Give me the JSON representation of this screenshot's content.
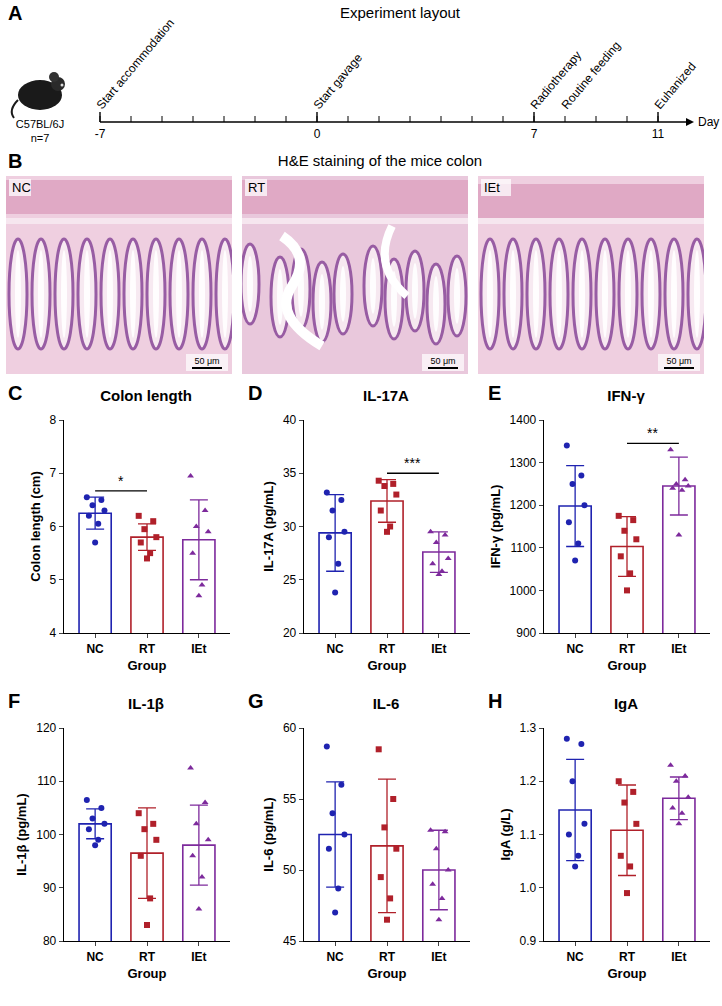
{
  "timeline": {
    "label": "A",
    "title": "Experiment layout",
    "subject": "C57BL/6J",
    "n": "n=7",
    "axis_label": "Day",
    "range": [
      -7,
      11
    ],
    "printed_days": [
      -7,
      0,
      7,
      11
    ],
    "events": [
      {
        "day": -7,
        "label": "Start accommodation"
      },
      {
        "day": 0,
        "label": "Start gavage"
      },
      {
        "day": 7,
        "label": "Radiotherapy"
      },
      {
        "day": 8,
        "label": "Routine feeding"
      },
      {
        "day": 11,
        "label": "Euhanized"
      }
    ]
  },
  "histology": {
    "label": "B",
    "title": "H&E staining of the mice colon",
    "panels": [
      {
        "name": "NC",
        "scale": "50 μm"
      },
      {
        "name": "RT",
        "scale": "50 μm"
      },
      {
        "name": "IEt",
        "scale": "50 μm"
      }
    ]
  },
  "chart_data": [
    {
      "label": "C",
      "type": "bar",
      "title": "Colon length",
      "ylabel": "Colon length (cm)",
      "xlabel": "Group",
      "categories": [
        "NC",
        "RT",
        "IEt"
      ],
      "ylim": [
        4,
        8
      ],
      "yticks": [
        4,
        5,
        6,
        7,
        8
      ],
      "grid": false,
      "series": [
        {
          "name": "NC",
          "color": "#1f23b0",
          "marker": "circle",
          "value": 6.25,
          "error": 0.3,
          "points": [
            6.55,
            6.5,
            6.4,
            6.3,
            6.2,
            6.05,
            5.7
          ]
        },
        {
          "name": "RT",
          "color": "#b0202a",
          "marker": "square",
          "value": 5.8,
          "error": 0.25,
          "points": [
            6.2,
            6.1,
            5.95,
            5.8,
            5.7,
            5.5,
            5.4
          ]
        },
        {
          "name": "IEt",
          "color": "#7d2a9c",
          "marker": "triangle-up",
          "value": 5.75,
          "error": 0.75,
          "points": [
            6.95,
            6.3,
            6.0,
            5.9,
            5.5,
            4.9,
            4.7
          ]
        }
      ],
      "significance": [
        {
          "from": "NC",
          "to": "RT",
          "text": "*"
        }
      ]
    },
    {
      "label": "D",
      "type": "bar",
      "title": "IL-17A",
      "ylabel": "IL-17A (pg/mL)",
      "xlabel": "Group",
      "categories": [
        "NC",
        "RT",
        "IEt"
      ],
      "ylim": [
        20,
        40
      ],
      "yticks": [
        20,
        25,
        30,
        35,
        40
      ],
      "grid": false,
      "series": [
        {
          "name": "NC",
          "color": "#1f23b0",
          "marker": "circle",
          "value": 29.4,
          "error": 3.6,
          "points": [
            33.2,
            32.5,
            31.5,
            29.5,
            29,
            26.5,
            23.8
          ]
        },
        {
          "name": "RT",
          "color": "#b0202a",
          "marker": "square",
          "value": 32.4,
          "error": 2,
          "points": [
            34.3,
            34,
            33.8,
            33,
            31.5,
            30,
            29.5
          ]
        },
        {
          "name": "IEt",
          "color": "#7d2a9c",
          "marker": "triangle-up",
          "value": 27.6,
          "error": 1.9,
          "points": [
            29.5,
            29.2,
            28.5,
            27,
            26.5,
            25.8,
            25.5
          ]
        }
      ],
      "significance": [
        {
          "from": "RT",
          "to": "IEt",
          "text": "***"
        }
      ]
    },
    {
      "label": "E",
      "type": "bar",
      "title": "IFN-γ",
      "ylabel": "IFN-γ (pg/mL)",
      "xlabel": "Group",
      "categories": [
        "NC",
        "RT",
        "IEt"
      ],
      "ylim": [
        900,
        1400
      ],
      "yticks": [
        900,
        1000,
        1100,
        1200,
        1300,
        1400
      ],
      "grid": false,
      "series": [
        {
          "name": "NC",
          "color": "#1f23b0",
          "marker": "circle",
          "value": 1198,
          "error": 95,
          "points": [
            1340,
            1270,
            1250,
            1200,
            1160,
            1110,
            1070
          ]
        },
        {
          "name": "RT",
          "color": "#b0202a",
          "marker": "square",
          "value": 1103,
          "error": 70,
          "points": [
            1175,
            1165,
            1140,
            1120,
            1080,
            1040,
            1000
          ]
        },
        {
          "name": "IEt",
          "color": "#7d2a9c",
          "marker": "triangle-up",
          "value": 1245,
          "error": 68,
          "points": [
            1330,
            1260,
            1250,
            1245,
            1240,
            1235,
            1130
          ]
        }
      ],
      "significance": [
        {
          "from": "RT",
          "to": "IEt",
          "text": "**"
        }
      ]
    },
    {
      "label": "F",
      "type": "bar",
      "title": "IL-1β",
      "ylabel": "IL-1β (pg/mL)",
      "xlabel": "Group",
      "categories": [
        "NC",
        "RT",
        "IEt"
      ],
      "ylim": [
        80,
        120
      ],
      "yticks": [
        80,
        90,
        100,
        110,
        120
      ],
      "grid": false,
      "series": [
        {
          "name": "NC",
          "color": "#1f23b0",
          "marker": "circle",
          "value": 102,
          "error": 2.8,
          "points": [
            106.5,
            105,
            103,
            102,
            101,
            99,
            98
          ]
        },
        {
          "name": "RT",
          "color": "#b0202a",
          "marker": "square",
          "value": 96.5,
          "error": 8.5,
          "points": [
            104,
            102,
            101,
            99,
            96,
            88,
            83
          ]
        },
        {
          "name": "IEt",
          "color": "#7d2a9c",
          "marker": "triangle-up",
          "value": 98,
          "error": 7.5,
          "points": [
            112.5,
            106,
            102,
            99,
            96,
            92,
            86
          ]
        }
      ],
      "significance": []
    },
    {
      "label": "G",
      "type": "bar",
      "title": "IL-6",
      "ylabel": "IL-6 (pg/mL)",
      "xlabel": "Group",
      "categories": [
        "NC",
        "RT",
        "IEt"
      ],
      "ylim": [
        45,
        60
      ],
      "yticks": [
        45,
        50,
        55,
        60
      ],
      "grid": false,
      "series": [
        {
          "name": "NC",
          "color": "#1f23b0",
          "marker": "circle",
          "value": 52.5,
          "error": 3.7,
          "points": [
            58.7,
            56,
            54,
            52.5,
            51.5,
            48.7,
            47
          ]
        },
        {
          "name": "RT",
          "color": "#b0202a",
          "marker": "square",
          "value": 51.7,
          "error": 4.7,
          "points": [
            58.5,
            55,
            53,
            51.5,
            49.5,
            48,
            46.5
          ]
        },
        {
          "name": "IEt",
          "color": "#7d2a9c",
          "marker": "triangle-up",
          "value": 50,
          "error": 2.8,
          "points": [
            52.8,
            52.7,
            51.5,
            50,
            49,
            48,
            46.5
          ]
        }
      ],
      "significance": []
    },
    {
      "label": "H",
      "type": "bar",
      "title": "IgA",
      "ylabel": "IgA (g/L)",
      "xlabel": "Group",
      "categories": [
        "NC",
        "RT",
        "IEt"
      ],
      "ylim": [
        0.9,
        1.3
      ],
      "yticks": [
        0.9,
        {
          "value": 1,
          "label": "1.0"
        },
        1.1,
        1.2,
        1.3
      ],
      "grid": false,
      "series": [
        {
          "name": "NC",
          "color": "#1f23b0",
          "marker": "circle",
          "value": 1.146,
          "error": 0.095,
          "points": [
            1.28,
            1.27,
            1.2,
            1.12,
            1.1,
            1.06,
            1.04
          ]
        },
        {
          "name": "RT",
          "color": "#b0202a",
          "marker": "square",
          "value": 1.108,
          "error": 0.085,
          "points": [
            1.2,
            1.18,
            1.16,
            1.12,
            1.06,
            1.04,
            0.99
          ]
        },
        {
          "name": "IEt",
          "color": "#7d2a9c",
          "marker": "triangle-up",
          "value": 1.168,
          "error": 0.04,
          "points": [
            1.23,
            1.21,
            1.2,
            1.17,
            1.15,
            1.14,
            1.12
          ]
        }
      ],
      "significance": []
    }
  ]
}
